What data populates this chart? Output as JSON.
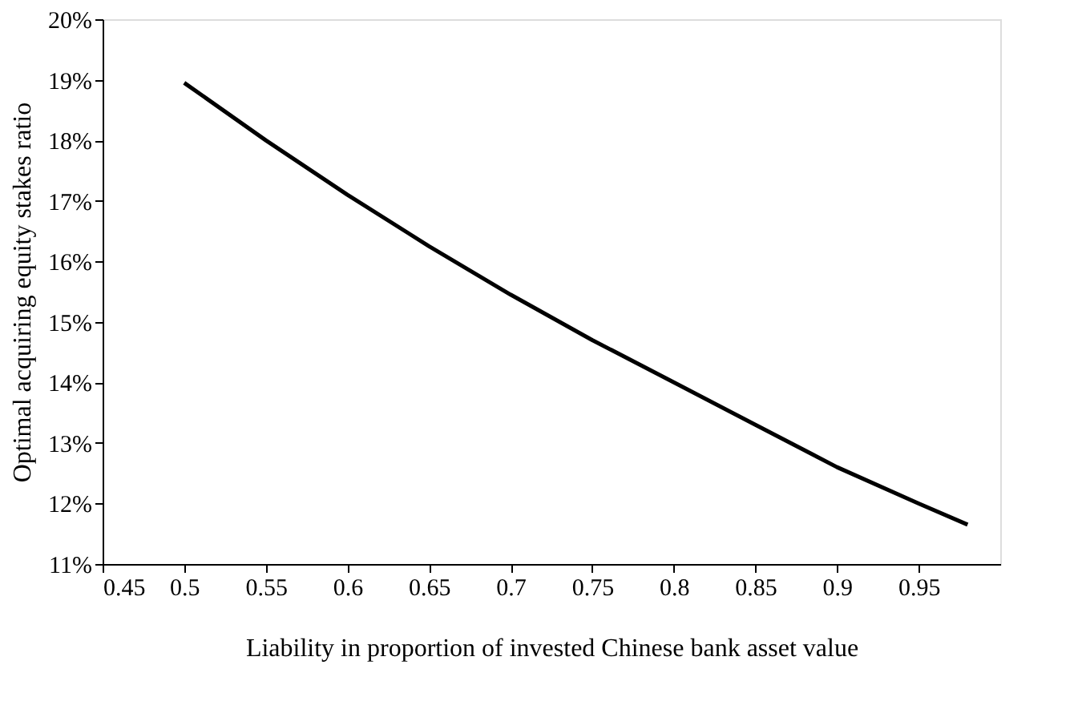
{
  "chart_data": {
    "type": "line",
    "xlabel": "Liability in proportion of invested Chinese bank asset value",
    "ylabel": "Optimal acquiring equity stakes ratio",
    "x": [
      0.5,
      0.55,
      0.6,
      0.65,
      0.7,
      0.75,
      0.8,
      0.85,
      0.9,
      0.95,
      0.98
    ],
    "series": [
      {
        "color": "#000000",
        "values": [
          18.95,
          18.0,
          17.1,
          16.25,
          15.45,
          14.7,
          14.0,
          13.3,
          12.6,
          12.0,
          11.65
        ]
      }
    ],
    "xlim": [
      0.45,
      1.0
    ],
    "xticks": [
      0.45,
      0.5,
      0.55,
      0.6,
      0.65,
      0.7,
      0.75,
      0.8,
      0.85,
      0.9,
      0.95
    ],
    "ylim": [
      11,
      20
    ],
    "yticks": [
      {
        "value": 11,
        "label": "11%"
      },
      {
        "value": 12,
        "label": "12%"
      },
      {
        "value": 13,
        "label": "13%"
      },
      {
        "value": 14,
        "label": "14%"
      },
      {
        "value": 15,
        "label": "15%"
      },
      {
        "value": 16,
        "label": "16%"
      },
      {
        "value": 17,
        "label": "17%"
      },
      {
        "value": 18,
        "label": "18%"
      },
      {
        "value": 19,
        "label": "19%"
      },
      {
        "value": 20,
        "label": "20%"
      }
    ],
    "grid": false,
    "legend": false,
    "marker": "none",
    "line_style": "solid"
  }
}
